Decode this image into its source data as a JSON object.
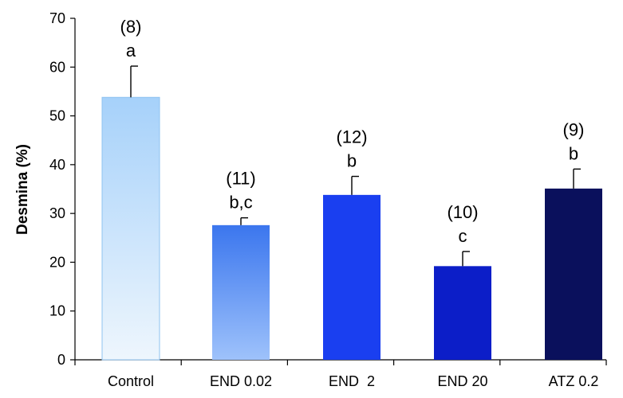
{
  "chart_data": {
    "type": "bar",
    "title": "",
    "xlabel": "",
    "ylabel": "Desmina (%)",
    "ylim": [
      0,
      70
    ],
    "yticks": [
      0,
      10,
      20,
      30,
      40,
      50,
      60,
      70
    ],
    "grid": false,
    "categories": [
      "Control",
      "END 0.02",
      "END  2",
      "END 20",
      "ATZ 0.2"
    ],
    "values": [
      53.8,
      27.6,
      33.8,
      19.2,
      35.1
    ],
    "errors": [
      6.4,
      1.5,
      3.8,
      3.0,
      4.0
    ],
    "counts": [
      "(8)",
      "(11)",
      "(12)",
      "(10)",
      "(9)"
    ],
    "letters": [
      "a",
      "b,c",
      "b",
      "c",
      "b"
    ],
    "colors": {
      "axis": "#000000",
      "bar_outline": "#8fc3f0",
      "control_top": "#a6d1fa",
      "control_bottom": "#eef6fd",
      "end002_top": "#3b76ee",
      "end002_bottom": "#9ec2fb",
      "end2": "#1a3ff0",
      "end20": "#0c1ec8",
      "atz02": "#0a105c"
    }
  }
}
